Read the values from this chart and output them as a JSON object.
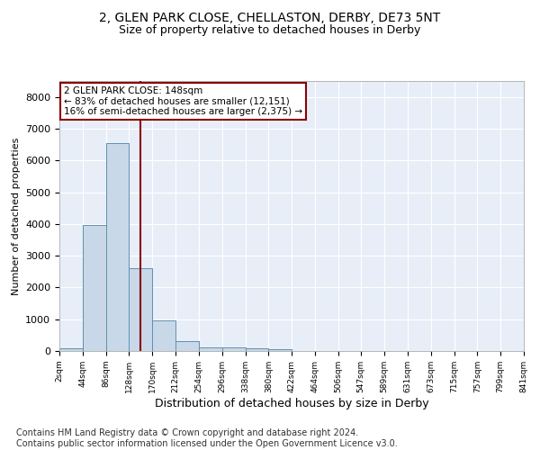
{
  "title": "2, GLEN PARK CLOSE, CHELLASTON, DERBY, DE73 5NT",
  "subtitle": "Size of property relative to detached houses in Derby",
  "xlabel": "Distribution of detached houses by size in Derby",
  "ylabel": "Number of detached properties",
  "bar_color": "#c8d8e8",
  "bar_edge_color": "#6090b0",
  "background_color": "#e8eef8",
  "grid_color": "white",
  "vline_x": 148,
  "vline_color": "#8b0000",
  "annotation_text": "2 GLEN PARK CLOSE: 148sqm\n← 83% of detached houses are smaller (12,151)\n16% of semi-detached houses are larger (2,375) →",
  "annotation_box_color": "white",
  "annotation_box_edge": "#8b0000",
  "bin_edges": [
    2,
    44,
    86,
    128,
    170,
    212,
    254,
    296,
    338,
    380,
    422,
    464,
    506,
    547,
    589,
    631,
    673,
    715,
    757,
    799,
    841
  ],
  "bin_values": [
    75,
    3980,
    6550,
    2620,
    955,
    310,
    125,
    105,
    85,
    55,
    0,
    0,
    0,
    0,
    0,
    0,
    0,
    0,
    0,
    0
  ],
  "ylim": [
    0,
    8500
  ],
  "yticks": [
    0,
    1000,
    2000,
    3000,
    4000,
    5000,
    6000,
    7000,
    8000
  ],
  "footer": "Contains HM Land Registry data © Crown copyright and database right 2024.\nContains public sector information licensed under the Open Government Licence v3.0.",
  "footer_fontsize": 7.0,
  "title_fontsize": 10,
  "subtitle_fontsize": 9,
  "xlabel_fontsize": 9,
  "ylabel_fontsize": 8,
  "annotation_fontsize": 7.5
}
